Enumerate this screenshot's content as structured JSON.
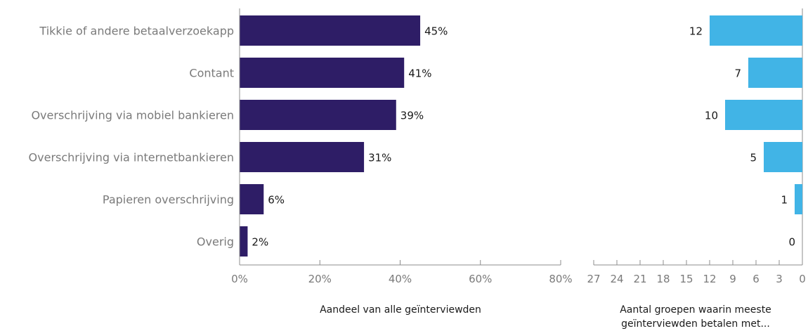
{
  "chart_data": [
    {
      "type": "bar",
      "orientation": "horizontal",
      "categories": [
        "Tikkie of andere betaalverzoekapp",
        "Contant",
        "Overschrijving via mobiel bankieren",
        "Overschrijving via internetbankieren",
        "Papieren overschrijving",
        "Overig"
      ],
      "values": [
        45,
        41,
        39,
        31,
        6,
        2
      ],
      "value_labels": [
        "45%",
        "41%",
        "39%",
        "31%",
        "6%",
        "2%"
      ],
      "xlabel": "Aandeel van alle geïnterviewden",
      "xlim": [
        0,
        80
      ],
      "xticks": [
        0,
        20,
        40,
        60,
        80
      ],
      "xtick_labels": [
        "0%",
        "20%",
        "40%",
        "60%",
        "80%"
      ],
      "color": "#2e1d66",
      "grid": false
    },
    {
      "type": "bar",
      "orientation": "horizontal",
      "direction": "right-to-left",
      "categories": [
        "Tikkie of andere betaalverzoekapp",
        "Contant",
        "Overschrijving via mobiel bankieren",
        "Overschrijving via internetbankieren",
        "Papieren overschrijving",
        "Overig"
      ],
      "values": [
        12,
        7,
        10,
        5,
        1,
        0
      ],
      "value_labels": [
        "12",
        "7",
        "10",
        "5",
        "1",
        "0"
      ],
      "xlabel_lines": [
        "Aantal groepen waarin meeste",
        "geïnterviewden betalen met..."
      ],
      "xlim": [
        0,
        27
      ],
      "xticks": [
        27,
        24,
        21,
        18,
        15,
        12,
        9,
        6,
        3,
        0
      ],
      "xtick_labels": [
        "27",
        "24",
        "21",
        "18",
        "15",
        "12",
        "9",
        "6",
        "3",
        "0"
      ],
      "color": "#41b4e6",
      "grid": false
    }
  ]
}
